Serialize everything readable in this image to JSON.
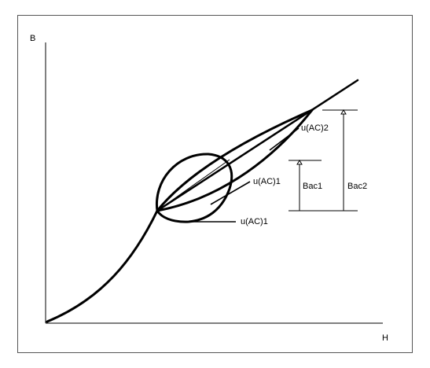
{
  "axes": {
    "y_label": "B",
    "x_label": "H"
  },
  "labels": {
    "u_ac2": "u(AC)2",
    "u_ac1_upper": "u(AC)1",
    "u_ac1_lower": "u(AC)1",
    "bac1": "Bac1",
    "bac2": "Bac2"
  }
}
